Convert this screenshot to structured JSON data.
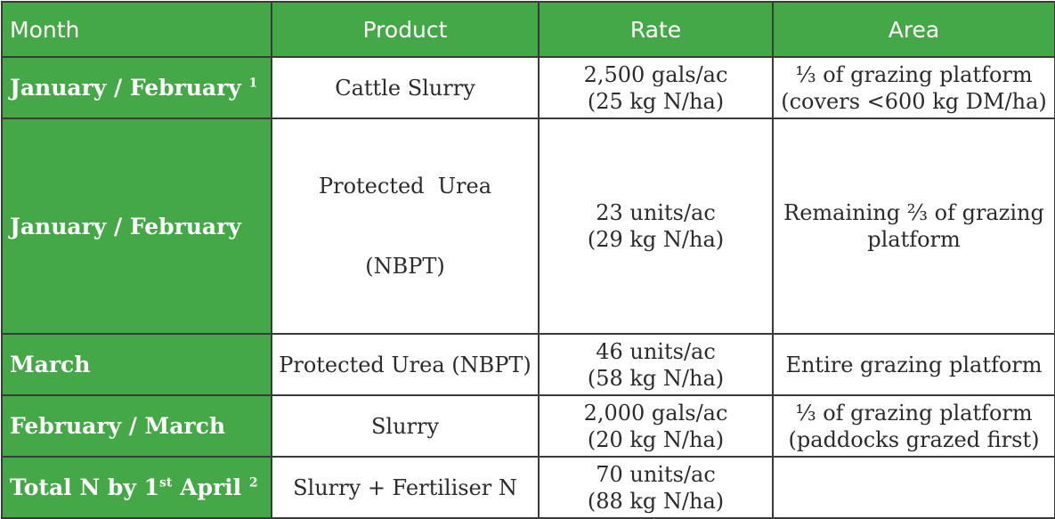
{
  "table": {
    "headers": [
      "Month",
      "Product",
      "Rate",
      "Area"
    ],
    "rows": [
      {
        "month": "January / February",
        "month_sup": "1",
        "product": [
          "Cattle Slurry"
        ],
        "rate": [
          "2,500 gals/ac",
          "(25 kg N/ha)"
        ],
        "area": [
          "⅓ of grazing platform",
          "(covers <600 kg DM/ha)"
        ]
      },
      {
        "month": "January / February",
        "month_sup": "",
        "product": [
          "Protected  Urea",
          "(NBPT)"
        ],
        "rate": [
          "23 units/ac",
          "(29 kg N/ha)"
        ],
        "area": [
          "Remaining ⅔ of grazing",
          "platform"
        ]
      },
      {
        "month": "March",
        "month_sup": "",
        "product": [
          "Protected Urea (NBPT)"
        ],
        "rate": [
          "46 units/ac",
          "(58 kg N/ha)"
        ],
        "area": [
          "Entire grazing platform"
        ]
      },
      {
        "month": "February / March",
        "month_sup": "",
        "product": [
          "Slurry"
        ],
        "rate": [
          "2,000 gals/ac",
          "(20 kg N/ha)"
        ],
        "area": [
          "⅓ of grazing platform",
          "(paddocks grazed first)"
        ]
      },
      {
        "month_parts": [
          "Total N by 1",
          "st",
          " April ",
          "2"
        ],
        "product": [
          "Slurry + Fertiliser N"
        ],
        "rate": [
          "70 units/ac",
          "(88 kg N/ha)"
        ],
        "area": []
      }
    ]
  },
  "colors": {
    "header_green": "#45a847",
    "border": "#3a3a3a",
    "header_text": "#ffffff",
    "body_text": "#2b2b2b"
  }
}
